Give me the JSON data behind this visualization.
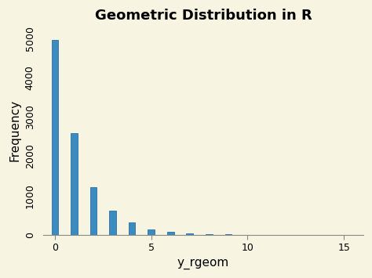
{
  "title": "Geometric Distribution in R",
  "xlabel": "y_rgeom",
  "ylabel": "Frequency",
  "background_color": "#f7f5e1",
  "bar_color": "#3b8bbf",
  "bar_edge_color": "#2a6fa8",
  "bar_positions": [
    0,
    1,
    2,
    3,
    4,
    5,
    6,
    7,
    8,
    9,
    10
  ],
  "bar_heights": [
    4950,
    2580,
    1210,
    620,
    310,
    145,
    75,
    38,
    18,
    10,
    5
  ],
  "xlim": [
    -0.6,
    16
  ],
  "ylim": [
    0,
    5300
  ],
  "yticks": [
    0,
    1000,
    2000,
    3000,
    4000,
    5000
  ],
  "xticks": [
    0,
    5,
    10,
    15
  ],
  "bar_width": 0.35,
  "title_fontsize": 13,
  "axis_label_fontsize": 11,
  "tick_fontsize": 9
}
